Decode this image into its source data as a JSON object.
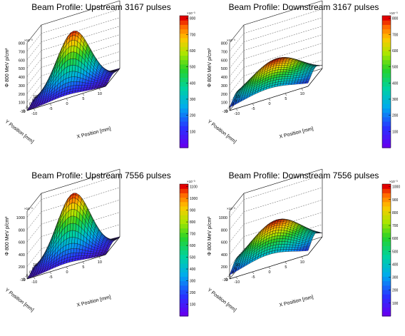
{
  "chart_data": [
    {
      "type": "surface",
      "title": "Beam Profile: Upstream 3167 pulses",
      "xlabel": "X Position [mm]",
      "ylabel": "Y Position [mm]",
      "zlabel": "Φ 800 MeV p/cm²",
      "multiplier": "×10⁻³",
      "xlim": [
        -12,
        12
      ],
      "ylim": [
        -12,
        12
      ],
      "zlim": [
        0,
        800
      ],
      "x_ticks": [
        "-10",
        "-5",
        "0",
        "5",
        "10"
      ],
      "y_ticks": [
        "-10",
        "-5",
        "0",
        "5",
        "10"
      ],
      "z_ticks": [
        "0",
        "100",
        "200",
        "300",
        "400",
        "500",
        "600",
        "700",
        "800"
      ],
      "colorbar_ticks": [
        "100",
        "200",
        "300",
        "400",
        "500",
        "600",
        "700",
        "800"
      ],
      "peak": 690,
      "sigma_mm": 5.0
    },
    {
      "type": "surface",
      "title": "Beam Profile: Downstream 3167 pulses",
      "xlabel": "X Position [mm]",
      "ylabel": "Y Position [mm]",
      "zlabel": "Φ 800 MeV p/cm²",
      "multiplier": "×10⁻³",
      "xlim": [
        -12,
        12
      ],
      "ylim": [
        -12,
        12
      ],
      "zlim": [
        0,
        800
      ],
      "x_ticks": [
        "-10",
        "-5",
        "0",
        "5",
        "10"
      ],
      "y_ticks": [
        "-10",
        "-5",
        "0",
        "5",
        "10"
      ],
      "z_ticks": [
        "0",
        "100",
        "200",
        "300",
        "400",
        "500",
        "600",
        "700",
        "800"
      ],
      "colorbar_ticks": [
        "100",
        "200",
        "300",
        "400",
        "500",
        "600",
        "700",
        "800"
      ],
      "peak": 360,
      "sigma_mm": 8.0
    },
    {
      "type": "surface",
      "title": "Beam Profile: Upstream 7556 pulses",
      "xlabel": "X Position [mm]",
      "ylabel": "Y Position [mm]",
      "zlabel": "Φ 800 MeV p/cm²",
      "multiplier": "×10⁻³",
      "xlim": [
        -12,
        12
      ],
      "ylim": [
        -12,
        12
      ],
      "zlim": [
        0,
        1100
      ],
      "x_ticks": [
        "-10",
        "-5",
        "0",
        "5",
        "10"
      ],
      "y_ticks": [
        "-10",
        "-5",
        "0",
        "5",
        "10"
      ],
      "z_ticks": [
        "0",
        "200",
        "400",
        "600",
        "800",
        "1000"
      ],
      "colorbar_ticks": [
        "100",
        "200",
        "300",
        "400",
        "500",
        "600",
        "700",
        "800",
        "900",
        "1000",
        "1100"
      ],
      "peak": 1050,
      "sigma_mm": 5.0
    },
    {
      "type": "surface",
      "title": "Beam Profile: Downstream 7556 pulses",
      "xlabel": "X Position [mm]",
      "ylabel": "Y Position [mm]",
      "zlabel": "Φ 800 MeV p/cm²",
      "multiplier": "×10⁻³",
      "xlim": [
        -12,
        12
      ],
      "ylim": [
        -12,
        12
      ],
      "zlim": [
        0,
        1100
      ],
      "x_ticks": [
        "-10",
        "-5",
        "0",
        "5",
        "10"
      ],
      "y_ticks": [
        "-10",
        "-5",
        "0",
        "5",
        "10"
      ],
      "z_ticks": [
        "0",
        "200",
        "400",
        "600",
        "800",
        "1000"
      ],
      "colorbar_ticks": [
        "100",
        "200",
        "300",
        "400",
        "500",
        "600",
        "700",
        "800",
        "900",
        "1000"
      ],
      "peak": 610,
      "sigma_mm": 8.0
    }
  ]
}
